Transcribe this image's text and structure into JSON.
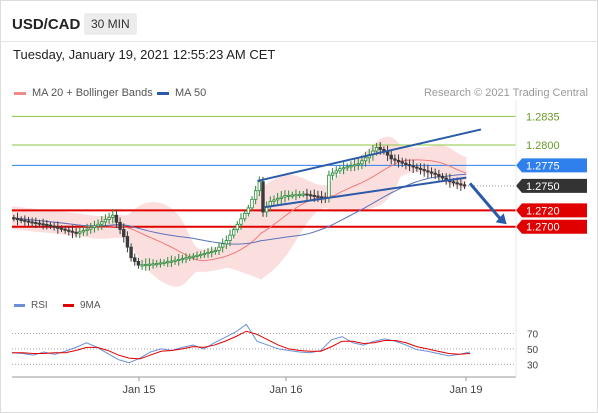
{
  "header": {
    "symbol": "USD/CAD",
    "timeframe": "30 MIN",
    "timestamp": "Tuesday, January 19, 2021 12:55:23 AM CET"
  },
  "legend": {
    "ma_bb_label": "MA 20 + Bollinger Bands",
    "ma50_label": "MA 50",
    "credit": "Research © 2021 Trading Central"
  },
  "rsi_legend": {
    "rsi_label": "RSI",
    "ma9_label": "9MA"
  },
  "colors": {
    "accent_blue": "#2f80ed",
    "support_red": "#e00000",
    "resistance_green": "#8cc63f",
    "channel_blue": "#2a5aa8",
    "bollinger_fill": "#f8c9c9",
    "ma20": "#f07a7a",
    "ma50": "#5a72b8"
  },
  "chart_data": [
    {
      "type": "line",
      "title": "",
      "x_ticks": [
        "Jan 15",
        "Jan 16",
        "Jan 19"
      ],
      "price_levels": [
        {
          "label": "1.2835",
          "value": 1.2835,
          "kind": "resistance"
        },
        {
          "label": "1.2800",
          "value": 1.28,
          "kind": "resistance"
        },
        {
          "label": "1.2775",
          "value": 1.2775,
          "kind": "pivot"
        },
        {
          "label": "1.2750",
          "value": 1.275,
          "kind": "last"
        },
        {
          "label": "1.2720",
          "value": 1.272,
          "kind": "support"
        },
        {
          "label": "1.2700",
          "value": 1.27,
          "kind": "support"
        }
      ],
      "ylim": [
        1.2625,
        1.2855
      ],
      "series": [
        {
          "name": "MA 20 + Bollinger Bands",
          "values": []
        },
        {
          "name": "MA 50",
          "values": []
        }
      ],
      "price_path": [
        [
          0,
          1.2711
        ],
        [
          5,
          1.2706
        ],
        [
          10,
          1.2702
        ],
        [
          14,
          1.2697
        ],
        [
          18,
          1.2692
        ],
        [
          21,
          1.2697
        ],
        [
          24,
          1.2703
        ],
        [
          26,
          1.2709
        ],
        [
          28,
          1.2714
        ],
        [
          31,
          1.2688
        ],
        [
          33,
          1.2662
        ],
        [
          35,
          1.2653
        ],
        [
          40,
          1.2655
        ],
        [
          44,
          1.2658
        ],
        [
          48,
          1.2662
        ],
        [
          52,
          1.2666
        ],
        [
          56,
          1.2671
        ],
        [
          59,
          1.2683
        ],
        [
          62,
          1.2703
        ],
        [
          65,
          1.2723
        ],
        [
          67,
          1.2744
        ],
        [
          68,
          1.2755
        ],
        [
          69,
          1.2718
        ],
        [
          71,
          1.2731
        ],
        [
          75,
          1.2738
        ],
        [
          80,
          1.274
        ],
        [
          86,
          1.2735
        ],
        [
          87,
          1.2763
        ],
        [
          90,
          1.2771
        ],
        [
          95,
          1.2777
        ],
        [
          98,
          1.2788
        ],
        [
          100,
          1.2797
        ],
        [
          102,
          1.2792
        ],
        [
          104,
          1.2783
        ],
        [
          108,
          1.2776
        ],
        [
          112,
          1.277
        ],
        [
          116,
          1.2764
        ],
        [
          120,
          1.2755
        ],
        [
          124,
          1.275
        ]
      ],
      "forecast": {
        "from": [
          125,
          1.2753
        ],
        "to": [
          135,
          1.2703
        ]
      }
    },
    {
      "type": "line",
      "title": "",
      "y_ticks": [
        70,
        50,
        30
      ],
      "ylim": [
        20,
        85
      ],
      "series": [
        {
          "name": "RSI",
          "values": [
            45,
            44,
            42,
            46,
            43,
            47,
            52,
            58,
            52,
            44,
            36,
            32,
            38,
            46,
            50,
            48,
            52,
            55,
            50,
            58,
            65,
            72,
            82,
            60,
            55,
            50,
            48,
            46,
            45,
            48,
            62,
            66,
            58,
            55,
            60,
            63,
            60,
            55,
            49,
            47,
            44,
            41,
            43,
            46
          ]
        },
        {
          "name": "9MA",
          "values": [
            45,
            45,
            44,
            44,
            45,
            45,
            48,
            52,
            52,
            48,
            42,
            38,
            37,
            42,
            47,
            48,
            50,
            53,
            52,
            55,
            60,
            66,
            73,
            69,
            62,
            55,
            50,
            48,
            47,
            47,
            53,
            60,
            60,
            57,
            58,
            61,
            61,
            58,
            53,
            50,
            47,
            44,
            43,
            44
          ]
        }
      ]
    }
  ]
}
